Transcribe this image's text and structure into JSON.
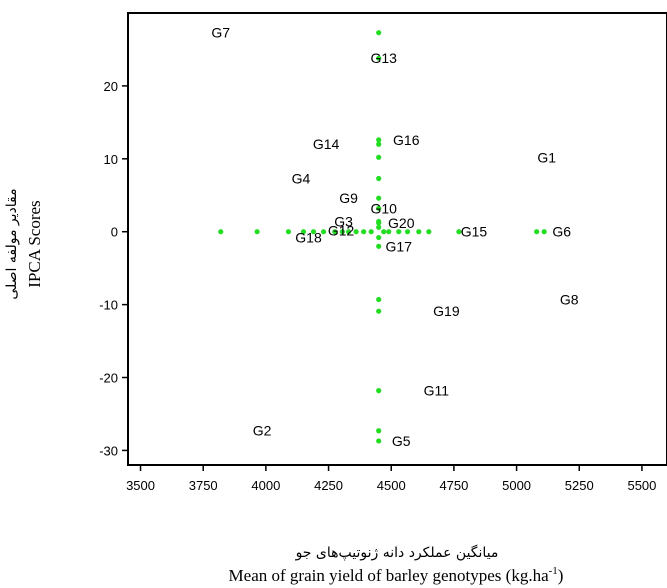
{
  "chart_data": {
    "type": "scatter",
    "xlabel_fa": "میانگین عملکرد دانه ژنوتیپ‌های جو",
    "xlabel": "Mean of grain yield of barley genotypes (kg.ha",
    "xlabel_sup": "-1",
    "xlabel_close": ")",
    "ylabel_fa": "مقادیر مولفه اصلی",
    "ylabel": "IPCA Scores",
    "xlim": [
      3450,
      5600
    ],
    "ylim": [
      -32,
      30
    ],
    "x_ticks": [
      3500,
      3750,
      4000,
      4250,
      4500,
      4750,
      5000,
      5250,
      5500
    ],
    "y_ticks": [
      -30,
      -20,
      -10,
      0,
      10,
      20
    ],
    "grid": false,
    "marker_color": "#22dd22",
    "genotypes": [
      {
        "name": "G1",
        "x": 5120,
        "y": 10.2
      },
      {
        "name": "G2",
        "x": 3985,
        "y": -27.3
      },
      {
        "name": "G3",
        "x": 4310,
        "y": 1.4
      },
      {
        "name": "G4",
        "x": 4140,
        "y": 7.3
      },
      {
        "name": "G5",
        "x": 4540,
        "y": -28.7
      },
      {
        "name": "G6",
        "x": 5180,
        "y": 0.0
      },
      {
        "name": "G7",
        "x": 3820,
        "y": 27.3
      },
      {
        "name": "G8",
        "x": 5210,
        "y": -9.3
      },
      {
        "name": "G9",
        "x": 4330,
        "y": 4.6
      },
      {
        "name": "G10",
        "x": 4470,
        "y": 3.2
      },
      {
        "name": "G11",
        "x": 4680,
        "y": -21.8
      },
      {
        "name": "G12",
        "x": 4300,
        "y": 0.2
      },
      {
        "name": "G13",
        "x": 4470,
        "y": 23.8
      },
      {
        "name": "G14",
        "x": 4240,
        "y": 12.0
      },
      {
        "name": "G15",
        "x": 4830,
        "y": 0.0
      },
      {
        "name": "G16",
        "x": 4560,
        "y": 12.6
      },
      {
        "name": "G17",
        "x": 4530,
        "y": -2.0
      },
      {
        "name": "G18",
        "x": 4170,
        "y": -0.8
      },
      {
        "name": "G19",
        "x": 4720,
        "y": -10.9
      },
      {
        "name": "G20",
        "x": 4540,
        "y": 1.2
      }
    ],
    "points": [
      {
        "x": 4450,
        "y": 27.3
      },
      {
        "x": 4450,
        "y": 23.8
      },
      {
        "x": 4450,
        "y": 12.6
      },
      {
        "x": 4450,
        "y": 12.0
      },
      {
        "x": 4450,
        "y": 10.2
      },
      {
        "x": 4450,
        "y": 7.3
      },
      {
        "x": 4450,
        "y": 4.6
      },
      {
        "x": 4450,
        "y": 3.2
      },
      {
        "x": 4450,
        "y": 1.4
      },
      {
        "x": 4450,
        "y": 1.2
      },
      {
        "x": 4450,
        "y": 0.6
      },
      {
        "x": 4450,
        "y": -0.8
      },
      {
        "x": 4450,
        "y": -2.0
      },
      {
        "x": 4450,
        "y": -9.3
      },
      {
        "x": 4450,
        "y": -10.9
      },
      {
        "x": 4450,
        "y": -21.8
      },
      {
        "x": 4450,
        "y": -27.3
      },
      {
        "x": 4450,
        "y": -28.7
      },
      {
        "x": 3820,
        "y": 0
      },
      {
        "x": 3965,
        "y": 0
      },
      {
        "x": 4090,
        "y": 0
      },
      {
        "x": 4150,
        "y": 0
      },
      {
        "x": 4190,
        "y": 0
      },
      {
        "x": 4230,
        "y": 0
      },
      {
        "x": 4275,
        "y": 0
      },
      {
        "x": 4305,
        "y": 0
      },
      {
        "x": 4330,
        "y": 0
      },
      {
        "x": 4360,
        "y": 0
      },
      {
        "x": 4390,
        "y": 0
      },
      {
        "x": 4420,
        "y": 0
      },
      {
        "x": 4470,
        "y": 0
      },
      {
        "x": 4490,
        "y": 0
      },
      {
        "x": 4530,
        "y": 0
      },
      {
        "x": 4565,
        "y": 0
      },
      {
        "x": 4610,
        "y": 0
      },
      {
        "x": 4650,
        "y": 0
      },
      {
        "x": 4770,
        "y": 0
      },
      {
        "x": 5080,
        "y": 0
      },
      {
        "x": 5110,
        "y": 0
      }
    ]
  }
}
